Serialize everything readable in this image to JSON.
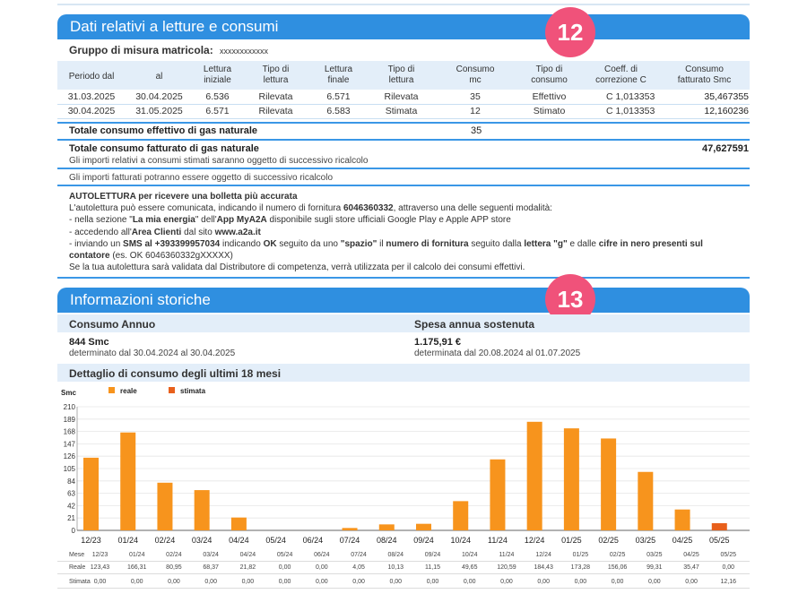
{
  "section1": {
    "title": "Dati relativi a letture e consumi",
    "badge": "12",
    "meter_label": "Gruppo di misura matricola:",
    "meter_value": "xxxxxxxxxxxx",
    "columns": [
      "Periodo dal",
      "al",
      "Lettura iniziale",
      "Tipo di lettura",
      "Lettura finale",
      "Tipo di lettura",
      "Consumo mc",
      "Tipo di consumo",
      "Coeff. di correzione C",
      "Consumo fatturato Smc"
    ],
    "rows": [
      [
        "31.03.2025",
        "30.04.2025",
        "6.536",
        "Rilevata",
        "6.571",
        "Rilevata",
        "35",
        "Effettivo",
        "C 1,013353",
        "35,467355"
      ],
      [
        "30.04.2025",
        "31.05.2025",
        "6.571",
        "Rilevata",
        "6.583",
        "Stimata",
        "12",
        "Stimato",
        "C 1,013353",
        "12,160236"
      ]
    ],
    "total_effective_label": "Totale consumo effettivo di gas naturale",
    "total_effective_value": "35",
    "total_billed_label": "Totale consumo fatturato di gas naturale",
    "total_billed_value": "47,627591",
    "note1": "Gli importi relativi a consumi stimati saranno oggetto di successivo ricalcolo",
    "note2": "Gli importi fatturati potranno essere oggetto di successivo ricalcolo",
    "auto_title": "AUTOLETTURA per ricevere una bolletta più accurata",
    "auto_l1a": "L'autolettura può essere comunicata, indicando il numero di fornitura ",
    "auto_l1b": "6046360332",
    "auto_l1c": ", attraverso una delle seguenti modalità:",
    "auto_l2a": "- nella sezione \"",
    "auto_l2b": "La mia energia",
    "auto_l2c": "\" dell'",
    "auto_l2d": "App MyA2A",
    "auto_l2e": " disponibile sugli store ufficiali Google Play e Apple APP store",
    "auto_l3a": "- accedendo all'",
    "auto_l3b": "Area Clienti",
    "auto_l3c": " dal sito ",
    "auto_l3d": "www.a2a.it",
    "auto_l4a": "- inviando un ",
    "auto_l4b": "SMS al +393399957034",
    "auto_l4c": " indicando ",
    "auto_l4d": "OK",
    "auto_l4e": " seguito da uno ",
    "auto_l4f": "\"spazio\"",
    "auto_l4g": " il ",
    "auto_l4h": "numero di fornitura",
    "auto_l4i": " seguito dalla ",
    "auto_l4j": "lettera \"g\"",
    "auto_l4k": " e dalle ",
    "auto_l4l": "cifre in nero presenti sul",
    "auto_l5a": "contatore",
    "auto_l5b": " (es. OK 6046360332gXXXXX)",
    "auto_l6": "Se la tua autolettura sarà validata dal Distributore di competenza, verrà utilizzata per il calcolo dei consumi effettivi."
  },
  "section2": {
    "title": "Informazioni storiche",
    "badge": "13",
    "annual_label": "Consumo Annuo",
    "annual_value": "844 Smc",
    "annual_period": "determinato dal 30.04.2024 al 30.04.2025",
    "spend_label": "Spesa annua sostenuta",
    "spend_value": "1.175,91 €",
    "spend_period": "determinata dal 20.08.2024 al 01.07.2025",
    "detail_label": "Dettaglio di consumo degli ultimi 18 mesi",
    "table_row_labels": [
      "Mese",
      "Reale",
      "Stimata"
    ]
  },
  "chart_data": {
    "type": "bar",
    "ylabel": "Smc",
    "ylim": [
      0,
      210
    ],
    "yticks": [
      0,
      21,
      42,
      63,
      84,
      105,
      126,
      147,
      168,
      189,
      210
    ],
    "categories": [
      "12/23",
      "01/24",
      "02/24",
      "03/24",
      "04/24",
      "05/24",
      "06/24",
      "07/24",
      "08/24",
      "09/24",
      "10/24",
      "11/24",
      "12/24",
      "01/25",
      "02/25",
      "03/25",
      "04/25",
      "05/25"
    ],
    "series": [
      {
        "name": "reale",
        "color": "#f7941d",
        "values": [
          123.43,
          166.31,
          80.95,
          68.37,
          21.82,
          0,
          0,
          4.05,
          10.13,
          11.15,
          49.65,
          120.59,
          184.43,
          173.28,
          156.06,
          99.31,
          35.47,
          0
        ]
      },
      {
        "name": "stimata",
        "color": "#e8601c",
        "values": [
          0,
          0,
          0,
          0,
          0,
          0,
          0,
          0,
          0,
          0,
          0,
          0,
          0,
          0,
          0,
          0,
          0,
          12.16
        ]
      }
    ],
    "table": {
      "reale": [
        "123,43",
        "166,31",
        "80,95",
        "68,37",
        "21,82",
        "0,00",
        "0,00",
        "4,05",
        "10,13",
        "11,15",
        "49,65",
        "120,59",
        "184,43",
        "173,28",
        "156,06",
        "99,31",
        "35,47",
        "0,00"
      ],
      "stimata": [
        "0,00",
        "0,00",
        "0,00",
        "0,00",
        "0,00",
        "0,00",
        "0,00",
        "0,00",
        "0,00",
        "0,00",
        "0,00",
        "0,00",
        "0,00",
        "0,00",
        "0,00",
        "0,00",
        "0,00",
        "12,16"
      ]
    }
  }
}
